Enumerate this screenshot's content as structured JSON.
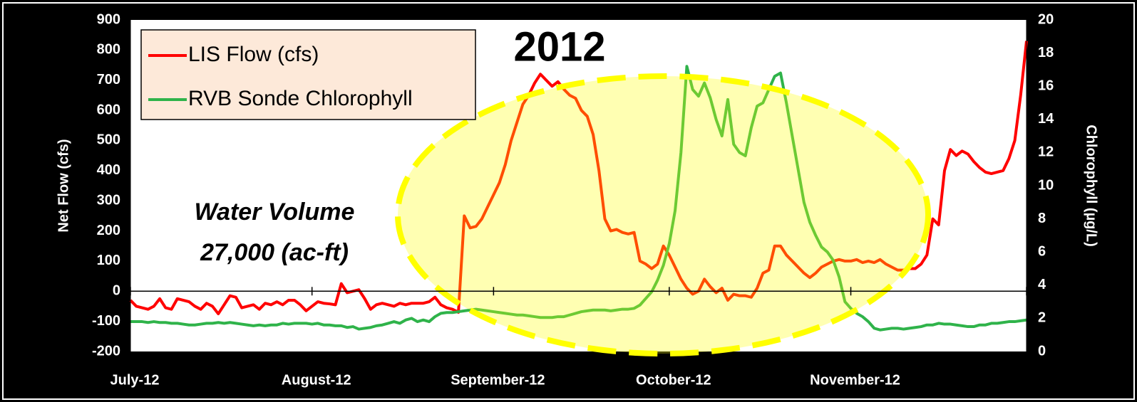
{
  "chart_data": {
    "type": "line",
    "title": "2012",
    "annotations": [
      "Water Volume",
      "27,000 (ac-ft)"
    ],
    "y_label": "Net Flow (cfs)",
    "y2_label": "Chlorophyll (µg/L)",
    "legend": "upper left",
    "categories": [
      "July-12",
      null,
      null,
      null,
      null,
      null,
      null,
      null,
      null,
      null,
      null,
      null,
      null,
      null,
      null,
      null,
      null,
      null,
      null,
      null,
      null,
      null,
      null,
      null,
      null,
      null,
      null,
      null,
      null,
      null,
      null,
      "August-12",
      null,
      null,
      null,
      null,
      null,
      null,
      null,
      null,
      null,
      null,
      null,
      null,
      null,
      null,
      null,
      null,
      null,
      null,
      null,
      null,
      null,
      null,
      null,
      null,
      null,
      null,
      null,
      null,
      null,
      null,
      "September-12",
      null,
      null,
      null,
      null,
      null,
      null,
      null,
      null,
      null,
      null,
      null,
      null,
      null,
      null,
      null,
      null,
      null,
      null,
      null,
      null,
      null,
      null,
      null,
      null,
      null,
      null,
      null,
      null,
      null,
      "October-12",
      null,
      null,
      null,
      null,
      null,
      null,
      null,
      null,
      null,
      null,
      null,
      null,
      null,
      null,
      null,
      null,
      null,
      null,
      null,
      null,
      null,
      null,
      null,
      null,
      null,
      null,
      null,
      null,
      null,
      null,
      "November-12",
      null,
      null,
      null,
      null,
      null,
      null,
      null,
      null,
      null,
      null,
      null,
      null,
      null,
      null,
      null,
      null,
      null,
      null,
      null,
      null,
      null,
      null,
      null,
      null,
      null,
      null,
      null,
      null,
      null,
      null
    ],
    "ylim": [
      -200,
      900
    ],
    "yticks": [
      -200,
      -100,
      0,
      100,
      200,
      300,
      400,
      500,
      600,
      700,
      800,
      900
    ],
    "y2lim": [
      0,
      20
    ],
    "y2ticks": [
      0,
      2,
      4,
      6,
      8,
      10,
      12,
      14,
      16,
      18,
      20
    ],
    "series": [
      {
        "name": "LIS Flow (cfs)",
        "color": "#ff0000",
        "values": [
          -30,
          -50,
          -55,
          -60,
          -50,
          -25,
          -55,
          -60,
          -25,
          -30,
          -35,
          -50,
          -60,
          -40,
          -50,
          -75,
          -45,
          -15,
          -20,
          -55,
          -50,
          -45,
          -60,
          -40,
          -45,
          -35,
          -45,
          -30,
          -30,
          -45,
          -65,
          -50,
          -35,
          -40,
          -42,
          -45,
          25,
          -5,
          0,
          5,
          -25,
          -60,
          -45,
          -40,
          -45,
          -50,
          -40,
          -45,
          -40,
          -40,
          -40,
          -35,
          -20,
          -45,
          -55,
          -60,
          -70,
          250,
          210,
          215,
          240,
          280,
          320,
          360,
          420,
          500,
          560,
          620,
          650,
          690,
          720,
          700,
          680,
          695,
          670,
          650,
          640,
          600,
          580,
          520,
          400,
          240,
          200,
          205,
          195,
          190,
          195,
          100,
          90,
          75,
          90,
          150,
          120,
          80,
          40,
          10,
          -10,
          0,
          40,
          15,
          -5,
          10,
          -30,
          -10,
          -15,
          -15,
          -20,
          10,
          60,
          70,
          150,
          150,
          120,
          100,
          80,
          60,
          45,
          60,
          80,
          90,
          100,
          105,
          100,
          100,
          105,
          95,
          100,
          95,
          105,
          90,
          80,
          70,
          70,
          75,
          75,
          90,
          120,
          240,
          220,
          400,
          470,
          450,
          465,
          455,
          430,
          410,
          395,
          390,
          395,
          400,
          440,
          500,
          650,
          830
        ]
      },
      {
        "name": "RVB Sonde Chlorophyll",
        "color": "#2fb34a",
        "axis": "y2",
        "values": [
          1.8,
          1.8,
          1.8,
          1.75,
          1.8,
          1.75,
          1.75,
          1.7,
          1.7,
          1.65,
          1.6,
          1.6,
          1.65,
          1.7,
          1.7,
          1.75,
          1.7,
          1.75,
          1.7,
          1.65,
          1.6,
          1.55,
          1.6,
          1.55,
          1.6,
          1.6,
          1.7,
          1.65,
          1.7,
          1.7,
          1.7,
          1.65,
          1.7,
          1.6,
          1.6,
          1.55,
          1.55,
          1.45,
          1.5,
          1.35,
          1.4,
          1.45,
          1.55,
          1.6,
          1.7,
          1.8,
          1.7,
          1.9,
          2.0,
          1.8,
          1.9,
          1.8,
          2.1,
          2.3,
          2.35,
          2.35,
          2.4,
          2.45,
          2.5,
          2.55,
          2.5,
          2.45,
          2.4,
          2.35,
          2.3,
          2.25,
          2.2,
          2.2,
          2.15,
          2.1,
          2.05,
          2.05,
          2.05,
          2.1,
          2.1,
          2.2,
          2.3,
          2.4,
          2.45,
          2.5,
          2.5,
          2.5,
          2.45,
          2.5,
          2.55,
          2.55,
          2.6,
          2.8,
          3.2,
          3.6,
          4.3,
          5.2,
          6.5,
          8.5,
          12,
          17.2,
          15.8,
          15.4,
          16.2,
          15.3,
          14,
          13,
          15.2,
          12.5,
          12,
          11.8,
          13.5,
          14.8,
          15,
          15.8,
          16.6,
          16.8,
          15,
          13,
          11,
          9,
          7.8,
          7,
          6.3,
          6,
          5.5,
          4.5,
          3,
          2.6,
          2.3,
          2.1,
          1.8,
          1.4,
          1.3,
          1.35,
          1.4,
          1.4,
          1.35,
          1.4,
          1.45,
          1.5,
          1.6,
          1.6,
          1.7,
          1.65,
          1.65,
          1.6,
          1.55,
          1.5,
          1.5,
          1.6,
          1.6,
          1.7,
          1.7,
          1.75,
          1.8,
          1.8,
          1.85,
          1.9
        ]
      }
    ]
  }
}
